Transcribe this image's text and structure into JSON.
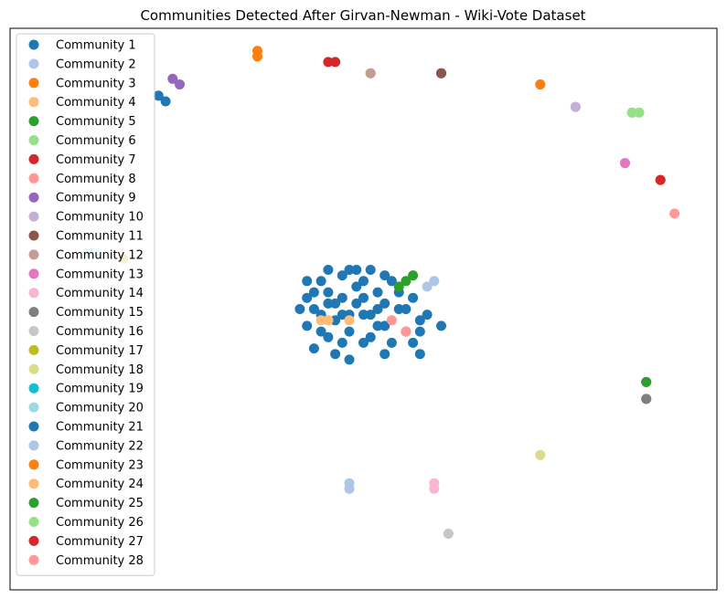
{
  "chart_data": {
    "type": "scatter",
    "title": "Communities Detected After Girvan-Newman - Wiki-Vote Dataset",
    "xlabel": "",
    "ylabel": "",
    "axes_visible": false,
    "grid": false,
    "legend_position": "upper-left",
    "series": [
      {
        "name": "Community 1",
        "color": "#1f77b4",
        "points": [
          [
            0.21,
            0.88
          ],
          [
            0.22,
            0.87
          ],
          [
            0.47,
            0.52
          ],
          [
            0.45,
            0.53
          ],
          [
            0.49,
            0.51
          ],
          [
            0.51,
            0.49
          ],
          [
            0.53,
            0.47
          ],
          [
            0.46,
            0.48
          ],
          [
            0.52,
            0.53
          ],
          [
            0.48,
            0.46
          ],
          [
            0.55,
            0.5
          ],
          [
            0.43,
            0.5
          ],
          [
            0.5,
            0.55
          ],
          [
            0.41,
            0.5
          ],
          [
            0.58,
            0.48
          ],
          [
            0.44,
            0.55
          ],
          [
            0.56,
            0.46
          ],
          [
            0.5,
            0.44
          ],
          [
            0.47,
            0.56
          ],
          [
            0.53,
            0.56
          ],
          [
            0.45,
            0.45
          ],
          [
            0.57,
            0.52
          ],
          [
            0.42,
            0.47
          ],
          [
            0.51,
            0.45
          ],
          [
            0.48,
            0.57
          ],
          [
            0.54,
            0.44
          ],
          [
            0.49,
            0.54
          ],
          [
            0.44,
            0.49
          ],
          [
            0.46,
            0.51
          ],
          [
            0.52,
            0.5
          ],
          [
            0.5,
            0.49
          ],
          [
            0.55,
            0.53
          ],
          [
            0.43,
            0.53
          ],
          [
            0.47,
            0.44
          ],
          [
            0.59,
            0.49
          ],
          [
            0.46,
            0.42
          ],
          [
            0.53,
            0.42
          ],
          [
            0.43,
            0.43
          ],
          [
            0.57,
            0.44
          ],
          [
            0.45,
            0.57
          ],
          [
            0.49,
            0.57
          ],
          [
            0.51,
            0.57
          ],
          [
            0.54,
            0.55
          ],
          [
            0.42,
            0.52
          ],
          [
            0.58,
            0.46
          ],
          [
            0.53,
            0.51
          ],
          [
            0.48,
            0.49
          ],
          [
            0.45,
            0.51
          ],
          [
            0.5,
            0.52
          ],
          [
            0.52,
            0.47
          ],
          [
            0.47,
            0.49
          ],
          [
            0.56,
            0.5
          ],
          [
            0.44,
            0.46
          ],
          [
            0.58,
            0.42
          ],
          [
            0.61,
            0.47
          ],
          [
            0.48,
            0.41
          ],
          [
            0.42,
            0.55
          ]
        ]
      },
      {
        "name": "Community 2",
        "color": "#aec7e8",
        "points": [
          [
            0.59,
            0.54
          ],
          [
            0.6,
            0.55
          ]
        ]
      },
      {
        "name": "Community 3",
        "color": "#ff7f0e",
        "points": [
          [
            0.35,
            0.95
          ],
          [
            0.35,
            0.96
          ]
        ]
      },
      {
        "name": "Community 4",
        "color": "#ffbb78",
        "points": [
          [
            0.44,
            0.48
          ],
          [
            0.45,
            0.48
          ],
          [
            0.48,
            0.48
          ]
        ]
      },
      {
        "name": "Community 5",
        "color": "#2ca02c",
        "points": [
          [
            0.56,
            0.55
          ],
          [
            0.57,
            0.56
          ]
        ]
      },
      {
        "name": "Community 6",
        "color": "#98df8a",
        "points": [
          [
            0.88,
            0.85
          ],
          [
            0.89,
            0.85
          ]
        ]
      },
      {
        "name": "Community 7",
        "color": "#d62728",
        "points": [
          [
            0.45,
            0.94
          ],
          [
            0.46,
            0.94
          ]
        ]
      },
      {
        "name": "Community 8",
        "color": "#ff9896",
        "points": [
          [
            0.54,
            0.48
          ],
          [
            0.56,
            0.46
          ]
        ]
      },
      {
        "name": "Community 9",
        "color": "#9467bd",
        "points": [
          [
            0.23,
            0.91
          ],
          [
            0.24,
            0.9
          ]
        ]
      },
      {
        "name": "Community 10",
        "color": "#c5b0d5",
        "points": [
          [
            0.8,
            0.86
          ],
          [
            0.8,
            0.86
          ]
        ]
      },
      {
        "name": "Community 11",
        "color": "#8c564b",
        "points": [
          [
            0.61,
            0.92
          ],
          [
            0.61,
            0.92
          ]
        ]
      },
      {
        "name": "Community 12",
        "color": "#c49c94",
        "points": [
          [
            0.51,
            0.92
          ],
          [
            0.51,
            0.92
          ]
        ]
      },
      {
        "name": "Community 13",
        "color": "#e377c2",
        "points": [
          [
            0.87,
            0.76
          ],
          [
            0.87,
            0.76
          ]
        ]
      },
      {
        "name": "Community 14",
        "color": "#f7b6d2",
        "points": [
          [
            0.6,
            0.19
          ],
          [
            0.6,
            0.18
          ]
        ]
      },
      {
        "name": "Community 15",
        "color": "#7f7f7f",
        "points": [
          [
            0.9,
            0.34
          ],
          [
            0.9,
            0.34
          ]
        ]
      },
      {
        "name": "Community 16",
        "color": "#c7c7c7",
        "points": [
          [
            0.62,
            0.1
          ],
          [
            0.62,
            0.1
          ]
        ]
      },
      {
        "name": "Community 17",
        "color": "#bcbd22",
        "points": [
          [
            0.16,
            0.59
          ]
        ]
      },
      {
        "name": "Community 18",
        "color": "#dbdb8d",
        "points": [
          [
            0.75,
            0.24
          ],
          [
            0.75,
            0.24
          ]
        ]
      },
      {
        "name": "Community 19",
        "color": "#17becf",
        "points": [
          [
            0.11,
            0.6
          ]
        ]
      },
      {
        "name": "Community 20",
        "color": "#9edae5",
        "points": [
          [
            0.11,
            0.6
          ],
          [
            0.12,
            0.6
          ]
        ]
      },
      {
        "name": "Community 21",
        "color": "#1f77b4",
        "points": [
          [
            0.9,
            0.37
          ]
        ]
      },
      {
        "name": "Community 22",
        "color": "#aec7e8",
        "points": [
          [
            0.48,
            0.18
          ],
          [
            0.48,
            0.19
          ]
        ]
      },
      {
        "name": "Community 23",
        "color": "#ff7f0e",
        "points": [
          [
            0.75,
            0.9
          ],
          [
            0.75,
            0.9
          ]
        ]
      },
      {
        "name": "Community 24",
        "color": "#ffbb78",
        "points": [
          [
            0.45,
            0.48
          ]
        ]
      },
      {
        "name": "Community 25",
        "color": "#2ca02c",
        "points": [
          [
            0.9,
            0.37
          ],
          [
            0.55,
            0.54
          ]
        ]
      },
      {
        "name": "Community 26",
        "color": "#98df8a",
        "points": [
          [
            0.88,
            0.85
          ]
        ]
      },
      {
        "name": "Community 27",
        "color": "#d62728",
        "points": [
          [
            0.92,
            0.73
          ],
          [
            0.92,
            0.73
          ]
        ]
      },
      {
        "name": "Community 28",
        "color": "#ff9896",
        "points": [
          [
            0.94,
            0.67
          ]
        ]
      }
    ]
  }
}
